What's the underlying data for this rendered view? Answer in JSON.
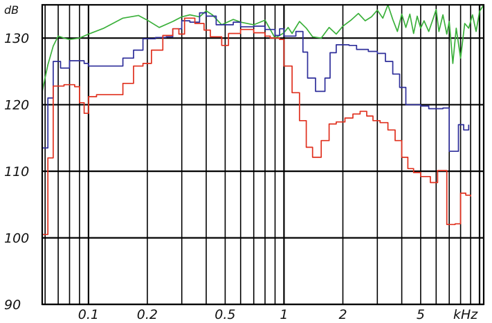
{
  "chart_data": {
    "type": "line",
    "title": "",
    "ylabel": "dB",
    "xunit": "kHz",
    "xscale": "log",
    "xlim": [
      0.058,
      10.5
    ],
    "ylim": [
      90,
      135
    ],
    "grid": true,
    "y_ticks": [
      {
        "value": 90,
        "label": "90"
      },
      {
        "value": 100,
        "label": "100"
      },
      {
        "value": 110,
        "label": "110"
      },
      {
        "value": 120,
        "label": "120"
      },
      {
        "value": 130,
        "label": "130"
      }
    ],
    "x_tick_labels": [
      {
        "value": 0.1,
        "label": "0.1"
      },
      {
        "value": 0.2,
        "label": "0.2"
      },
      {
        "value": 0.5,
        "label": "0.5"
      },
      {
        "value": 1,
        "label": "1"
      },
      {
        "value": 2,
        "label": "2"
      },
      {
        "value": 5,
        "label": "5"
      }
    ],
    "x_grid_values": [
      0.06,
      0.07,
      0.08,
      0.09,
      0.1,
      0.2,
      0.3,
      0.4,
      0.5,
      0.6,
      0.7,
      0.8,
      0.9,
      1,
      2,
      3,
      4,
      5,
      6,
      7,
      8,
      9,
      10
    ],
    "series": [
      {
        "color": "#3ab03a",
        "step": false,
        "points": [
          [
            0.058,
            122
          ],
          [
            0.062,
            126
          ],
          [
            0.066,
            128.8
          ],
          [
            0.07,
            130.3
          ],
          [
            0.075,
            130.0
          ],
          [
            0.08,
            129.8
          ],
          [
            0.09,
            130.0
          ],
          [
            0.1,
            130.6
          ],
          [
            0.12,
            131.5
          ],
          [
            0.15,
            133.0
          ],
          [
            0.18,
            133.4
          ],
          [
            0.2,
            132.7
          ],
          [
            0.23,
            131.6
          ],
          [
            0.27,
            132.5
          ],
          [
            0.3,
            133.2
          ],
          [
            0.33,
            133.5
          ],
          [
            0.37,
            133.2
          ],
          [
            0.4,
            134.1
          ],
          [
            0.43,
            133.5
          ],
          [
            0.48,
            132.0
          ],
          [
            0.55,
            132.8
          ],
          [
            0.6,
            132.4
          ],
          [
            0.7,
            132.0
          ],
          [
            0.8,
            132.7
          ],
          [
            0.85,
            131.3
          ],
          [
            0.9,
            130.0
          ],
          [
            0.95,
            130.4
          ],
          [
            1.0,
            130.8
          ],
          [
            1.05,
            131.6
          ],
          [
            1.1,
            130.7
          ],
          [
            1.2,
            132.5
          ],
          [
            1.3,
            131.5
          ],
          [
            1.4,
            130.2
          ],
          [
            1.55,
            130.0
          ],
          [
            1.7,
            131.6
          ],
          [
            1.85,
            130.6
          ],
          [
            2.0,
            131.8
          ],
          [
            2.2,
            132.7
          ],
          [
            2.4,
            133.7
          ],
          [
            2.6,
            132.6
          ],
          [
            2.8,
            133.2
          ],
          [
            3.0,
            134.2
          ],
          [
            3.2,
            133.0
          ],
          [
            3.4,
            135.0
          ],
          [
            3.6,
            132.8
          ],
          [
            3.8,
            131.0
          ],
          [
            4.0,
            133.6
          ],
          [
            4.2,
            131.6
          ],
          [
            4.4,
            133.6
          ],
          [
            4.6,
            130.7
          ],
          [
            4.8,
            133.3
          ],
          [
            5.0,
            131.5
          ],
          [
            5.2,
            132.6
          ],
          [
            5.5,
            131.0
          ],
          [
            5.8,
            133.0
          ],
          [
            6.0,
            134.3
          ],
          [
            6.2,
            131.0
          ],
          [
            6.5,
            133.5
          ],
          [
            6.8,
            130.6
          ],
          [
            7.0,
            132.5
          ],
          [
            7.3,
            126.2
          ],
          [
            7.6,
            131.5
          ],
          [
            8.0,
            127.0
          ],
          [
            8.4,
            132.2
          ],
          [
            8.8,
            131.5
          ],
          [
            9.2,
            133.5
          ],
          [
            9.6,
            131.0
          ],
          [
            10.0,
            134.0
          ],
          [
            10.5,
            135.0
          ]
        ]
      },
      {
        "color": "#2e2e9a",
        "step": true,
        "points": [
          [
            0.058,
            113.5
          ],
          [
            0.062,
            121
          ],
          [
            0.066,
            126.5
          ],
          [
            0.072,
            125.5
          ],
          [
            0.08,
            126.6
          ],
          [
            0.095,
            126.2
          ],
          [
            0.1,
            125.8
          ],
          [
            0.13,
            125.8
          ],
          [
            0.15,
            127.0
          ],
          [
            0.17,
            128.2
          ],
          [
            0.19,
            129.9
          ],
          [
            0.22,
            130.1
          ],
          [
            0.25,
            130.2
          ],
          [
            0.27,
            131.4
          ],
          [
            0.3,
            132.6
          ],
          [
            0.33,
            132.4
          ],
          [
            0.37,
            133.8
          ],
          [
            0.4,
            133.3
          ],
          [
            0.45,
            132.0
          ],
          [
            0.55,
            132.4
          ],
          [
            0.6,
            131.7
          ],
          [
            0.7,
            131.8
          ],
          [
            0.8,
            131.3
          ],
          [
            0.9,
            130.4
          ],
          [
            0.95,
            131.4
          ],
          [
            1.0,
            130.3
          ],
          [
            1.15,
            131.0
          ],
          [
            1.25,
            127.9
          ],
          [
            1.32,
            124.0
          ],
          [
            1.45,
            122.0
          ],
          [
            1.62,
            124.0
          ],
          [
            1.72,
            127.8
          ],
          [
            1.85,
            129.0
          ],
          [
            2.15,
            128.9
          ],
          [
            2.35,
            128.3
          ],
          [
            2.7,
            128.0
          ],
          [
            3.0,
            127.7
          ],
          [
            3.3,
            126.5
          ],
          [
            3.6,
            124.6
          ],
          [
            3.9,
            122.6
          ],
          [
            4.2,
            120.0
          ],
          [
            5.0,
            119.8
          ],
          [
            5.5,
            119.4
          ],
          [
            6.5,
            119.5
          ],
          [
            7.0,
            113.0
          ],
          [
            7.8,
            117.0
          ],
          [
            8.3,
            116.2
          ],
          [
            8.8,
            117.0
          ]
        ]
      },
      {
        "color": "#e0301e",
        "step": true,
        "points": [
          [
            0.058,
            100.5
          ],
          [
            0.062,
            112
          ],
          [
            0.066,
            122.8
          ],
          [
            0.075,
            123.0
          ],
          [
            0.085,
            122.7
          ],
          [
            0.09,
            120.3
          ],
          [
            0.095,
            118.7
          ],
          [
            0.1,
            121.2
          ],
          [
            0.11,
            121.5
          ],
          [
            0.13,
            121.5
          ],
          [
            0.15,
            123.2
          ],
          [
            0.17,
            125.8
          ],
          [
            0.19,
            126.2
          ],
          [
            0.21,
            128.2
          ],
          [
            0.24,
            130.4
          ],
          [
            0.27,
            131.4
          ],
          [
            0.29,
            130.6
          ],
          [
            0.31,
            133.0
          ],
          [
            0.35,
            132.2
          ],
          [
            0.39,
            131.2
          ],
          [
            0.42,
            130.2
          ],
          [
            0.48,
            128.9
          ],
          [
            0.52,
            130.7
          ],
          [
            0.6,
            131.3
          ],
          [
            0.7,
            130.8
          ],
          [
            0.8,
            130.3
          ],
          [
            0.85,
            130.0
          ],
          [
            0.95,
            129.8
          ],
          [
            1.0,
            125.8
          ],
          [
            1.1,
            121.8
          ],
          [
            1.2,
            117.6
          ],
          [
            1.3,
            113.6
          ],
          [
            1.4,
            112.1
          ],
          [
            1.55,
            114.6
          ],
          [
            1.7,
            117.1
          ],
          [
            1.85,
            117.4
          ],
          [
            2.05,
            118.0
          ],
          [
            2.25,
            118.6
          ],
          [
            2.45,
            119.0
          ],
          [
            2.65,
            118.3
          ],
          [
            2.85,
            117.6
          ],
          [
            3.1,
            117.3
          ],
          [
            3.4,
            116.2
          ],
          [
            3.7,
            114.6
          ],
          [
            4.0,
            112.1
          ],
          [
            4.3,
            110.4
          ],
          [
            4.6,
            109.8
          ],
          [
            5.0,
            109.2
          ],
          [
            5.6,
            108.3
          ],
          [
            6.1,
            110.1
          ],
          [
            6.8,
            102.0
          ],
          [
            7.5,
            102.1
          ],
          [
            8.0,
            106.7
          ],
          [
            8.5,
            106.4
          ],
          [
            9.0,
            106.2
          ]
        ]
      }
    ]
  }
}
